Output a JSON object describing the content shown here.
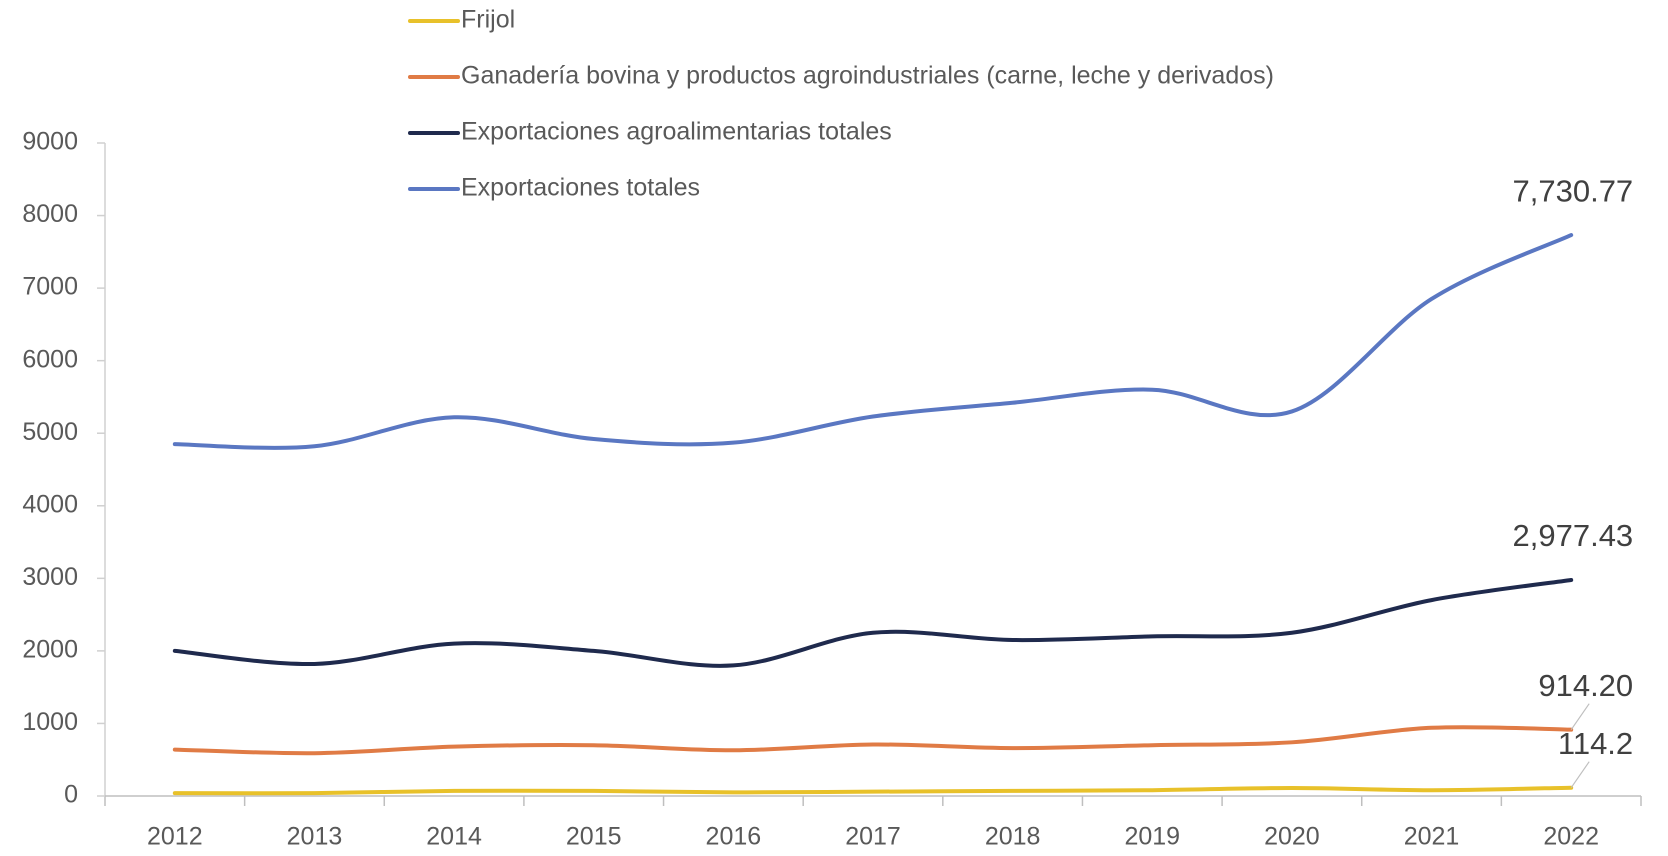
{
  "chart_data": {
    "type": "line",
    "categories": [
      "2012",
      "2013",
      "2014",
      "2015",
      "2016",
      "2017",
      "2018",
      "2019",
      "2020",
      "2021",
      "2022"
    ],
    "series": [
      {
        "name": "Frijol",
        "color": "#e8c12a",
        "values": [
          40,
          40,
          70,
          70,
          50,
          60,
          70,
          80,
          110,
          80,
          114.2
        ],
        "value_labels": [
          null,
          null,
          null,
          null,
          null,
          null,
          null,
          null,
          null,
          null,
          "114.2"
        ]
      },
      {
        "name": "Ganadería bovina y productos agroindustriales (carne, leche y derivados)",
        "color": "#e07b45",
        "values": [
          640,
          590,
          680,
          700,
          630,
          710,
          660,
          700,
          740,
          940,
          914.2
        ],
        "value_labels": [
          null,
          null,
          null,
          null,
          null,
          null,
          null,
          null,
          null,
          null,
          "914.20"
        ]
      },
      {
        "name": "Exportaciones agroalimentarias totales",
        "color": "#1f2a4d",
        "values": [
          2000,
          1820,
          2100,
          2000,
          1800,
          2250,
          2150,
          2200,
          2250,
          2700,
          2977.43
        ],
        "value_labels": [
          null,
          null,
          null,
          null,
          null,
          null,
          null,
          null,
          null,
          null,
          "2,977.43"
        ]
      },
      {
        "name": "Exportaciones totales",
        "color": "#5a77c2",
        "values": [
          4850,
          4820,
          5220,
          4920,
          4870,
          5230,
          5420,
          5600,
          5300,
          6850,
          7730.77
        ],
        "value_labels": [
          null,
          null,
          null,
          null,
          null,
          null,
          null,
          null,
          null,
          null,
          "7,730.77"
        ]
      }
    ],
    "ylim": [
      0,
      9000
    ],
    "yticks": [
      0,
      1000,
      2000,
      3000,
      4000,
      5000,
      6000,
      7000,
      8000,
      9000
    ],
    "grid": false,
    "legend": "top"
  }
}
